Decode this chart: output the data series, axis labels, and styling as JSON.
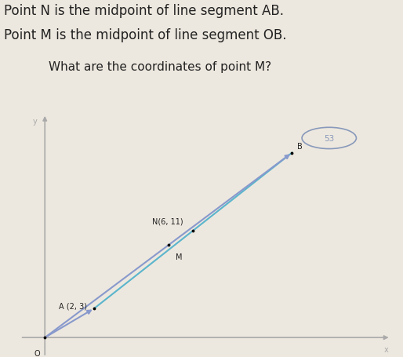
{
  "title_line1": "Point N is the midpoint of line segment AB.",
  "title_line2": "Point M is the midpoint of line segment OB.",
  "question": "What are the coordinates of point M?",
  "O": [
    0,
    0
  ],
  "A": [
    2,
    3
  ],
  "B": [
    10,
    19
  ],
  "N": [
    6,
    11
  ],
  "M": [
    5,
    9.5
  ],
  "N_label": "N(6, 11)",
  "A_label": "A (2, 3)",
  "B_label": "B",
  "M_label": "M",
  "O_label": "O",
  "axis_color": "#aaaaaa",
  "line_AB_color": "#5ab5cc",
  "line_OB_color": "#8899cc",
  "line_OA_color": "#8899cc",
  "bg_color": "#ede8df",
  "text_color": "#222222",
  "answer_circle_color": "#8899bb",
  "answer_text": "53",
  "title_fontsize": 12,
  "question_fontsize": 11,
  "figsize": [
    5.14,
    4.56
  ],
  "dpi": 100,
  "xlim": [
    -1,
    14
  ],
  "ylim": [
    -2,
    23
  ]
}
